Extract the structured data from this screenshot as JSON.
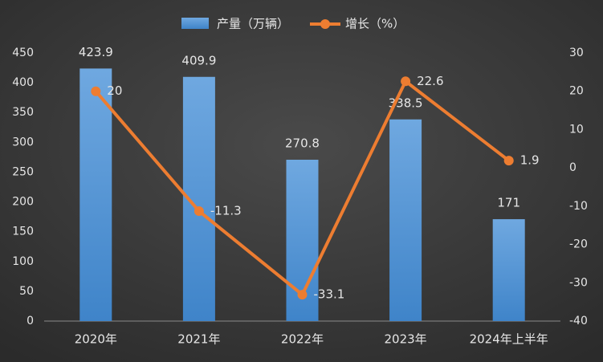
{
  "chart_data": {
    "type": "bar",
    "categories": [
      "2020年",
      "2021年",
      "2022年",
      "2023年",
      "2024年上半年"
    ],
    "series": [
      {
        "name": "产量（万辆）",
        "type": "bar",
        "color": "#5b9bd5",
        "values": [
          423.9,
          409.9,
          270.8,
          338.5,
          171
        ]
      },
      {
        "name": "增长（%）",
        "type": "line",
        "axis": "y2",
        "color": "#ed7d31",
        "values": [
          20,
          -11.3,
          -33.1,
          22.6,
          1.9
        ]
      }
    ],
    "ylim": [
      0,
      450
    ],
    "yticks": [
      0,
      50,
      100,
      150,
      200,
      250,
      300,
      350,
      400,
      450
    ],
    "y2lim": [
      -40,
      30
    ],
    "y2ticks": [
      -40,
      -30,
      -20,
      -10,
      0,
      10,
      20,
      30
    ],
    "grid": false,
    "legend": "top"
  }
}
